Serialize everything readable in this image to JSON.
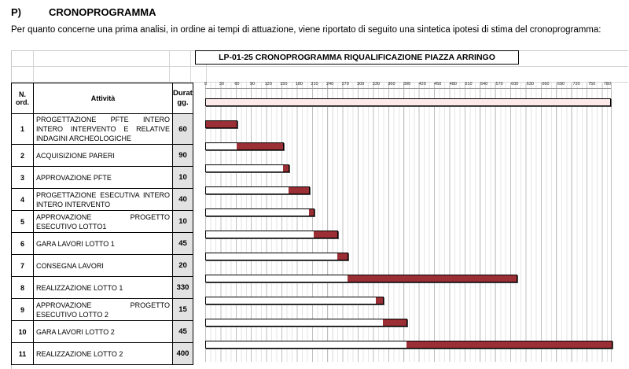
{
  "section": {
    "num": "P)",
    "title": "CRONOPROGRAMMA"
  },
  "intro": "Per quanto concerne una prima analisi, in ordine ai tempi di attuazione, viene riportato di seguito una sintetica ipotesi di stima del cronoprogramma:",
  "chart_title": "LP-01-25 CRONOPROGRAMMA RIQUALIFICAZIONE PIAZZA ARRINGO",
  "headers": {
    "no": "N. ord.",
    "activity": "Attività",
    "duration": "Durata gg."
  },
  "axis_ticks": [
    "0",
    "30",
    "60",
    "90",
    "120",
    "150",
    "180",
    "210",
    "240",
    "270",
    "300",
    "330",
    "360",
    "390",
    "420",
    "450",
    "480",
    "510",
    "540",
    "570",
    "600",
    "630",
    "660",
    "690",
    "720",
    "750",
    "780"
  ],
  "chart_data": {
    "type": "gantt",
    "title": "LP-01-25 CRONOPROGRAMMA RIQUALIFICAZIONE PIAZZA ARRINGO",
    "xunit": "giorni",
    "xlim": [
      0,
      790
    ],
    "total_span": [
      0,
      790
    ],
    "tasks": [
      {
        "no": "1",
        "activity": "PROGETTAZIONE PFTE INTERO INTERO INTERVENTO E RELATIVE INDAGINI ARCHEOLOGICHE",
        "start": 0,
        "duration": 60
      },
      {
        "no": "2",
        "activity": "ACQUISIZIONE PARERI",
        "start": 60,
        "duration": 90
      },
      {
        "no": "3",
        "activity": "APPROVAZIONE PFTE",
        "start": 150,
        "duration": 10
      },
      {
        "no": "4",
        "activity": "PROGETTAZIONE ESECUTIVA INTERO INTERO INTERVENTO",
        "start": 160,
        "duration": 40
      },
      {
        "no": "5",
        "activity": "APPROVAZIONE PROGETTO ESECUTIVO LOTTO1",
        "start": 200,
        "duration": 10
      },
      {
        "no": "6",
        "activity": "GARA LAVORI LOTTO 1",
        "start": 210,
        "duration": 45
      },
      {
        "no": "7",
        "activity": "CONSEGNA LAVORI",
        "start": 255,
        "duration": 20
      },
      {
        "no": "8",
        "activity": "REALIZZAZIONE LOTTO 1",
        "start": 275,
        "duration": 330
      },
      {
        "no": "9",
        "activity": "APPROVAZIONE PROGETTO ESECUTIVO LOTTO 2",
        "start": 330,
        "duration": 15
      },
      {
        "no": "10",
        "activity": "GARA LAVORI LOTTO 2",
        "start": 345,
        "duration": 45
      },
      {
        "no": "11",
        "activity": "REALIZZAZIONE LOTTO 2",
        "start": 390,
        "duration": 400
      }
    ],
    "durations_shown": [
      "60",
      "90",
      "10",
      "40",
      "10",
      "45",
      "20",
      "330",
      "15",
      "45",
      "400"
    ]
  }
}
